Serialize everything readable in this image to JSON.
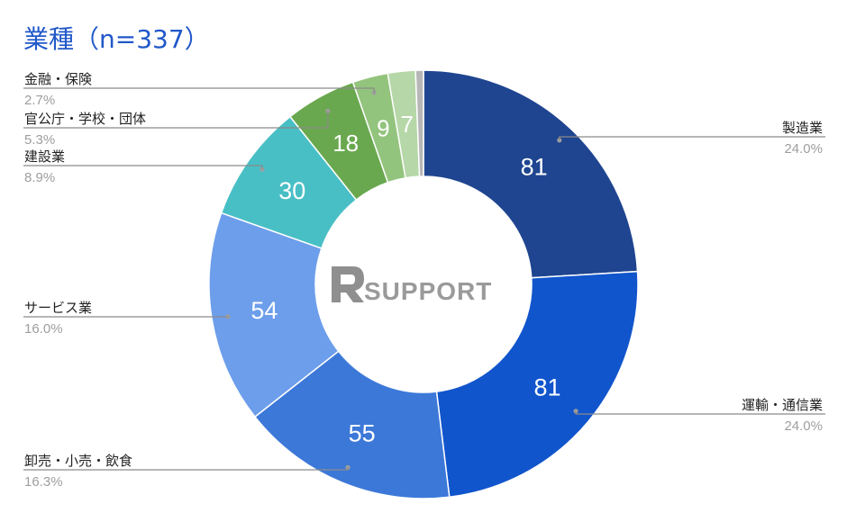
{
  "chart_data": {
    "type": "pie",
    "donut": true,
    "title": "業種（n=337）",
    "slices": [
      {
        "label": "製造業",
        "value": 81,
        "percent": "24.0%",
        "color": "#1f4590"
      },
      {
        "label": "運輸・通信業",
        "value": 81,
        "percent": "24.0%",
        "color": "#1155cc"
      },
      {
        "label": "卸売・小売・飲食",
        "value": 55,
        "percent": "16.3%",
        "color": "#3c78d8"
      },
      {
        "label": "サービス業",
        "value": 54,
        "percent": "16.0%",
        "color": "#6d9eeb"
      },
      {
        "label": "建設業",
        "value": 30,
        "percent": "8.9%",
        "color": "#48bfc5"
      },
      {
        "label": "官公庁・学校・団体",
        "value": 18,
        "percent": "5.3%",
        "color": "#6aa84f"
      },
      {
        "label": "金融・保険",
        "value": 9,
        "percent": "2.7%",
        "color": "#93c47d"
      },
      {
        "label": "",
        "value": 7,
        "percent": "",
        "color": "#b6d7a8"
      },
      {
        "label": "",
        "value": 2,
        "percent": "",
        "color": "#b7b7b7"
      }
    ],
    "legend": "none"
  },
  "watermark": {
    "text": "RSUPPORT"
  }
}
